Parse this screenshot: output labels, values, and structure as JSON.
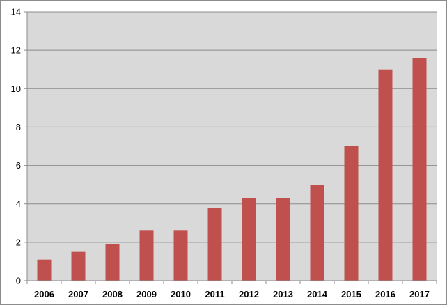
{
  "chart_data": {
    "type": "bar",
    "categories": [
      "2006",
      "2007",
      "2008",
      "2009",
      "2010",
      "2011",
      "2012",
      "2013",
      "2014",
      "2015",
      "2016",
      "2017"
    ],
    "values": [
      1.1,
      1.5,
      1.9,
      2.6,
      2.6,
      3.8,
      4.3,
      4.3,
      5.0,
      7.0,
      11.0,
      11.6
    ],
    "ylim": [
      0,
      14
    ],
    "yticks": [
      "0",
      "2",
      "4",
      "6",
      "8",
      "10",
      "12",
      "14"
    ],
    "grid": true,
    "legend": "none",
    "colors": {
      "bar": "#C0504D",
      "plot_background": "#D9D9D9",
      "gridline": "#8C8C8C",
      "axis": "#8C8C8C"
    }
  }
}
